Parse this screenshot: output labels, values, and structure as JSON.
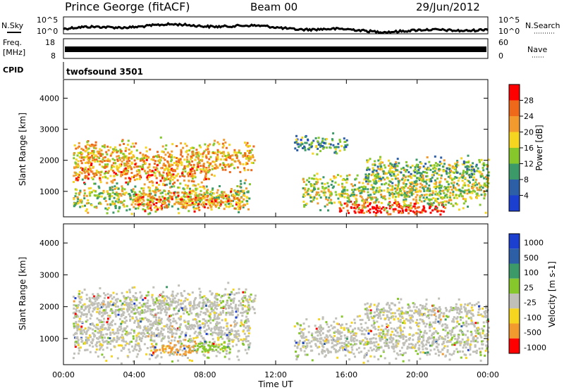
{
  "header": {
    "station": "Prince George (fitACF)",
    "beam": "Beam 00",
    "date": "29/Jun/2012"
  },
  "labels": {
    "nsky": "N.Sky",
    "nsearch": "N.Search",
    "freq_line1": "Freq.",
    "freq_line2": "[MHz]",
    "nave": "Nave",
    "cpid": "CPID",
    "cpid_value": "twofsound 3501",
    "x_axis": "Time UT"
  },
  "noise_panel": {
    "left_ticks": [
      "10^5",
      "10^0"
    ],
    "right_ticks": [
      "10^5",
      "10^0"
    ]
  },
  "freq_panel": {
    "left_ticks": [
      "18",
      "8"
    ],
    "right_ticks": [
      "60",
      "0"
    ]
  },
  "chart_data": [
    {
      "type": "heatmap",
      "title": "",
      "xlabel": "Time UT",
      "ylabel": "Slant Range [km]",
      "colorbar_label": "Power [dB]",
      "x_ticks": [
        "00:00",
        "04:00",
        "08:00",
        "12:00",
        "16:00",
        "20:00",
        "00:00"
      ],
      "y_ticks": [
        1000,
        2000,
        3000,
        4000
      ],
      "ylim": [
        180,
        4600
      ],
      "colorbar_ticks": [
        "28",
        "24",
        "20",
        "16",
        "12",
        "8",
        "4"
      ],
      "colors": [
        "#ff0000",
        "#ee6a1a",
        "#f29a2e",
        "#f5d520",
        "#86c82c",
        "#3b9a68",
        "#2c5fa6",
        "#1d3fd0"
      ],
      "regions": [
        {
          "t_start": 0.5,
          "t_end": 10.8,
          "r_center": 2100,
          "r_width": 500,
          "intensity": 18
        },
        {
          "t_start": 0.5,
          "t_end": 8.5,
          "r_center": 1600,
          "r_width": 400,
          "intensity": 20
        },
        {
          "t_start": 0.5,
          "t_end": 10.5,
          "r_center": 800,
          "r_width": 500,
          "intensity": 14
        },
        {
          "t_start": 4.0,
          "t_end": 10.0,
          "r_center": 650,
          "r_width": 300,
          "intensity": 22
        },
        {
          "t_start": 15.5,
          "t_end": 21.5,
          "r_center": 450,
          "r_width": 250,
          "intensity": 28
        },
        {
          "t_start": 13.5,
          "t_end": 24.0,
          "r_center": 1000,
          "r_width": 600,
          "intensity": 14
        },
        {
          "t_start": 17.0,
          "t_end": 24.0,
          "r_center": 1650,
          "r_width": 450,
          "intensity": 12
        },
        {
          "t_start": 13.0,
          "t_end": 16.0,
          "r_center": 2500,
          "r_width": 300,
          "intensity": 8
        }
      ]
    },
    {
      "type": "heatmap",
      "title": "",
      "xlabel": "Time UT",
      "ylabel": "Slant Range [km]",
      "colorbar_label": "Velocity [m s-1]",
      "x_ticks": [
        "00:00",
        "04:00",
        "08:00",
        "12:00",
        "16:00",
        "20:00",
        "00:00"
      ],
      "y_ticks": [
        1000,
        2000,
        3000,
        4000
      ],
      "ylim": [
        180,
        4600
      ],
      "colorbar_ticks": [
        "1000",
        "500",
        "100",
        "25",
        "-25",
        "-100",
        "-500",
        "-1000"
      ],
      "colors": [
        "#1d3fd0",
        "#2c5fa6",
        "#3b9a68",
        "#86c82c",
        "#c0c0b8",
        "#f5d520",
        "#f29a2e",
        "#ff0000"
      ],
      "regions": [
        {
          "t_start": 0.5,
          "t_end": 10.8,
          "r_center": 2100,
          "r_width": 500,
          "velocity": 0
        },
        {
          "t_start": 0.5,
          "t_end": 10.5,
          "r_center": 1200,
          "r_width": 900,
          "velocity": 0
        },
        {
          "t_start": 13.0,
          "t_end": 24.0,
          "r_center": 1000,
          "r_width": 700,
          "velocity": 0
        },
        {
          "t_start": 17.0,
          "t_end": 24.0,
          "r_center": 1800,
          "r_width": 400,
          "velocity": 0
        },
        {
          "t_start": 5.0,
          "t_end": 7.5,
          "r_center": 650,
          "r_width": 200,
          "velocity": -300
        },
        {
          "t_start": 7.5,
          "t_end": 9.5,
          "r_center": 700,
          "r_width": 200,
          "velocity": 150
        }
      ]
    }
  ]
}
